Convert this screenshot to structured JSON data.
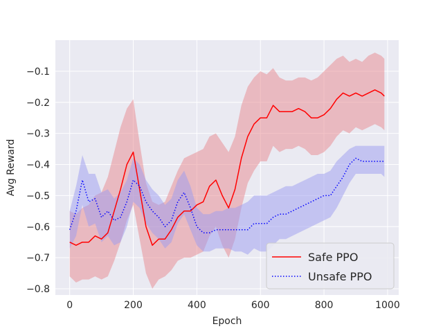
{
  "chart_data": {
    "type": "line",
    "title": "",
    "xlabel": "Epoch",
    "ylabel": "Avg Reward",
    "xlim": [
      -45,
      1035
    ],
    "ylim": [
      -0.82,
      -0.0
    ],
    "xticks": [
      0,
      200,
      400,
      600,
      800,
      1000
    ],
    "xtick_labels": [
      "0",
      "200",
      "400",
      "600",
      "800",
      "1000"
    ],
    "yticks": [
      -0.1,
      -0.2,
      -0.3,
      -0.4,
      -0.5,
      -0.6,
      -0.7,
      -0.8
    ],
    "ytick_labels": [
      "−0.1",
      "−0.2",
      "−0.3",
      "−0.4",
      "−0.5",
      "−0.6",
      "−0.7",
      "−0.8"
    ],
    "grid": true,
    "background": "#EAEAF2",
    "legend": {
      "position": "bottom-right"
    },
    "series": [
      {
        "name": "Safe PPO",
        "color": "#FF0000",
        "band_color": "#E8888E",
        "line_style": "solid",
        "x": [
          0,
          20,
          40,
          60,
          80,
          100,
          120,
          140,
          160,
          180,
          200,
          220,
          240,
          260,
          280,
          300,
          320,
          340,
          360,
          380,
          400,
          420,
          440,
          460,
          480,
          500,
          520,
          540,
          560,
          580,
          600,
          620,
          640,
          660,
          680,
          700,
          720,
          740,
          760,
          780,
          800,
          820,
          840,
          860,
          880,
          900,
          920,
          940,
          960,
          980,
          990
        ],
        "mean": [
          -0.65,
          -0.66,
          -0.65,
          -0.65,
          -0.63,
          -0.64,
          -0.62,
          -0.55,
          -0.48,
          -0.4,
          -0.36,
          -0.48,
          -0.6,
          -0.66,
          -0.64,
          -0.64,
          -0.61,
          -0.57,
          -0.55,
          -0.55,
          -0.53,
          -0.52,
          -0.47,
          -0.45,
          -0.5,
          -0.54,
          -0.48,
          -0.38,
          -0.31,
          -0.27,
          -0.25,
          -0.25,
          -0.21,
          -0.23,
          -0.23,
          -0.23,
          -0.22,
          -0.23,
          -0.25,
          -0.25,
          -0.24,
          -0.22,
          -0.19,
          -0.17,
          -0.18,
          -0.17,
          -0.18,
          -0.17,
          -0.16,
          -0.17,
          -0.18
        ],
        "upper": [
          -0.55,
          -0.56,
          -0.54,
          -0.53,
          -0.5,
          -0.49,
          -0.44,
          -0.36,
          -0.28,
          -0.22,
          -0.19,
          -0.33,
          -0.46,
          -0.52,
          -0.53,
          -0.52,
          -0.47,
          -0.42,
          -0.38,
          -0.37,
          -0.36,
          -0.35,
          -0.31,
          -0.3,
          -0.33,
          -0.36,
          -0.31,
          -0.21,
          -0.15,
          -0.12,
          -0.1,
          -0.11,
          -0.09,
          -0.12,
          -0.13,
          -0.13,
          -0.12,
          -0.12,
          -0.13,
          -0.12,
          -0.1,
          -0.08,
          -0.06,
          -0.05,
          -0.07,
          -0.06,
          -0.07,
          -0.05,
          -0.04,
          -0.05,
          -0.06
        ],
        "lower": [
          -0.76,
          -0.78,
          -0.77,
          -0.77,
          -0.76,
          -0.77,
          -0.76,
          -0.71,
          -0.65,
          -0.58,
          -0.53,
          -0.64,
          -0.75,
          -0.8,
          -0.77,
          -0.76,
          -0.74,
          -0.71,
          -0.7,
          -0.7,
          -0.69,
          -0.68,
          -0.63,
          -0.6,
          -0.66,
          -0.7,
          -0.64,
          -0.54,
          -0.46,
          -0.42,
          -0.39,
          -0.39,
          -0.34,
          -0.36,
          -0.35,
          -0.35,
          -0.34,
          -0.35,
          -0.37,
          -0.37,
          -0.36,
          -0.34,
          -0.31,
          -0.29,
          -0.3,
          -0.28,
          -0.29,
          -0.28,
          -0.27,
          -0.28,
          -0.29
        ]
      },
      {
        "name": "Unsafe PPO",
        "color": "#0000FF",
        "band_color": "#9C9CF0",
        "line_style": "dotted",
        "x": [
          0,
          20,
          40,
          60,
          80,
          100,
          120,
          140,
          160,
          180,
          200,
          220,
          240,
          260,
          280,
          300,
          320,
          340,
          360,
          380,
          400,
          420,
          440,
          460,
          480,
          500,
          520,
          540,
          560,
          580,
          600,
          620,
          640,
          660,
          680,
          700,
          720,
          740,
          760,
          780,
          800,
          820,
          840,
          860,
          880,
          900,
          920,
          940,
          960,
          980,
          990
        ],
        "mean": [
          -0.61,
          -0.55,
          -0.45,
          -0.52,
          -0.51,
          -0.57,
          -0.55,
          -0.58,
          -0.57,
          -0.52,
          -0.45,
          -0.47,
          -0.52,
          -0.55,
          -0.57,
          -0.6,
          -0.58,
          -0.52,
          -0.49,
          -0.54,
          -0.6,
          -0.62,
          -0.62,
          -0.61,
          -0.61,
          -0.61,
          -0.61,
          -0.61,
          -0.61,
          -0.59,
          -0.59,
          -0.59,
          -0.57,
          -0.56,
          -0.56,
          -0.55,
          -0.54,
          -0.53,
          -0.52,
          -0.51,
          -0.5,
          -0.5,
          -0.47,
          -0.44,
          -0.4,
          -0.38,
          -0.39,
          -0.39,
          -0.39,
          -0.39,
          -0.39
        ],
        "upper": [
          -0.55,
          -0.47,
          -0.37,
          -0.43,
          -0.43,
          -0.49,
          -0.48,
          -0.51,
          -0.49,
          -0.45,
          -0.38,
          -0.4,
          -0.45,
          -0.48,
          -0.5,
          -0.53,
          -0.51,
          -0.45,
          -0.42,
          -0.47,
          -0.54,
          -0.56,
          -0.56,
          -0.55,
          -0.55,
          -0.54,
          -0.54,
          -0.53,
          -0.52,
          -0.5,
          -0.5,
          -0.5,
          -0.49,
          -0.48,
          -0.47,
          -0.47,
          -0.46,
          -0.45,
          -0.44,
          -0.43,
          -0.43,
          -0.42,
          -0.39,
          -0.37,
          -0.35,
          -0.34,
          -0.34,
          -0.34,
          -0.34,
          -0.34,
          -0.34
        ],
        "lower": [
          -0.67,
          -0.63,
          -0.53,
          -0.6,
          -0.59,
          -0.65,
          -0.63,
          -0.66,
          -0.65,
          -0.6,
          -0.52,
          -0.54,
          -0.59,
          -0.62,
          -0.64,
          -0.67,
          -0.65,
          -0.59,
          -0.56,
          -0.61,
          -0.66,
          -0.68,
          -0.68,
          -0.67,
          -0.67,
          -0.67,
          -0.68,
          -0.68,
          -0.69,
          -0.67,
          -0.68,
          -0.68,
          -0.66,
          -0.64,
          -0.64,
          -0.63,
          -0.62,
          -0.61,
          -0.6,
          -0.59,
          -0.58,
          -0.57,
          -0.54,
          -0.5,
          -0.46,
          -0.43,
          -0.43,
          -0.43,
          -0.43,
          -0.43,
          -0.44
        ]
      }
    ]
  }
}
